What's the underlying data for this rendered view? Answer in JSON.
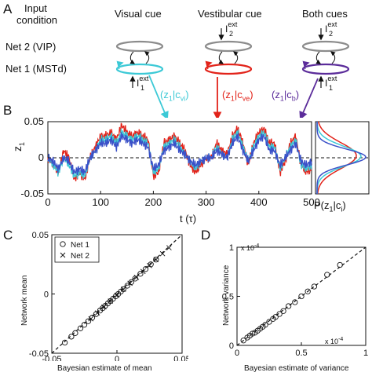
{
  "panels": {
    "A": {
      "letter": "A",
      "condition_header": [
        "Input",
        "condition"
      ],
      "columns": [
        {
          "label": "Visual cue",
          "color": "#3cc9d6",
          "arrow_label_main": "(z",
          "arrow_label_sub": "1",
          "arrow_label_mid": "|c",
          "arrow_label_sub2": "vi",
          "arrow_label_end": ")"
        },
        {
          "label": "Vestibular cue",
          "color": "#e2231a",
          "arrow_label_main": "(z",
          "arrow_label_sub": "1",
          "arrow_label_mid": "|c",
          "arrow_label_sub2": "ve",
          "arrow_label_end": ")"
        },
        {
          "label": "Both cues",
          "color": "#5b2c9a",
          "arrow_label_main": "(z",
          "arrow_label_sub": "1",
          "arrow_label_mid": "|c",
          "arrow_label_sub2": "b",
          "arrow_label_end": ")"
        }
      ],
      "net2_label": "Net 2 (VIP)",
      "net1_label": "Net 1 (MSTd)",
      "input_symbol": "I",
      "input_sup": "ext",
      "input_sub1": "1",
      "input_sub2": "2"
    },
    "B": {
      "letter": "B",
      "ylabel_main": "z",
      "ylabel_sub": "1",
      "xlabel": "t (τ)",
      "yticks": [
        "0.05",
        "0",
        "-0.05"
      ],
      "xticks": [
        "0",
        "100",
        "200",
        "300",
        "400",
        "500"
      ],
      "dist_label": "P(z",
      "dist_label_sub": "1",
      "dist_label_mid": "|c",
      "dist_label_sub2": "i",
      "dist_label_end": ")"
    },
    "C": {
      "letter": "C",
      "ylabel": "Network mean",
      "xlabel": "Bayesian estimate of mean",
      "yticks": [
        "0.05",
        "0",
        "-0.05"
      ],
      "xticks": [
        "-0.05",
        "0",
        "0.05"
      ],
      "legend": [
        "Net 1",
        "Net 2"
      ]
    },
    "D": {
      "letter": "D",
      "ylabel": "Network variance",
      "xlabel": "Bayesian estimate of variance",
      "yticks": [
        "1",
        "0.5",
        "0"
      ],
      "xticks": [
        "0",
        "0.5",
        "1"
      ],
      "y_mult": "x 10",
      "y_exp": "-4",
      "x_mult": "x 10",
      "x_exp": "-4"
    }
  },
  "colors": {
    "cyan": "#3cc9d6",
    "red": "#e2231a",
    "purple": "#5b2c9a",
    "blue": "#3a50c8",
    "gray": "#8c8c8c"
  },
  "chart_data": [
    {
      "type": "line",
      "panel": "B",
      "xlim": [
        0,
        500
      ],
      "ylim": [
        -0.05,
        0.05
      ],
      "x": [
        0,
        10,
        20,
        30,
        40,
        50,
        60,
        70,
        80,
        90,
        100,
        110,
        120,
        130,
        140,
        150,
        160,
        170,
        180,
        190,
        200,
        210,
        220,
        230,
        240,
        250,
        260,
        270,
        280,
        290,
        300,
        310,
        320,
        330,
        340,
        350,
        360,
        370,
        380,
        390,
        400,
        410,
        420,
        430,
        440,
        450,
        460,
        470,
        480,
        490,
        500
      ],
      "series": [
        {
          "name": "red",
          "values": [
            0.0,
            -0.01,
            -0.02,
            0.01,
            0.0,
            -0.03,
            -0.02,
            -0.03,
            0.0,
            0.015,
            0.03,
            0.03,
            0.035,
            0.025,
            0.045,
            0.035,
            0.03,
            0.035,
            0.03,
            0.025,
            -0.025,
            -0.02,
            0.02,
            0.025,
            0.03,
            0.02,
            0.01,
            -0.01,
            -0.02,
            -0.01,
            0.0,
            0.0,
            0.02,
            0.01,
            0.005,
            0.03,
            0.04,
            0.02,
            -0.01,
            0.02,
            0.035,
            0.04,
            0.02,
            0.02,
            -0.02,
            -0.005,
            0.02,
            0.03,
            -0.01,
            -0.02,
            -0.015
          ]
        },
        {
          "name": "cyan",
          "values": [
            0.0,
            -0.01,
            -0.02,
            0.0,
            -0.01,
            -0.025,
            -0.02,
            -0.025,
            0.0,
            0.01,
            0.025,
            0.025,
            0.03,
            0.02,
            0.035,
            0.03,
            0.025,
            0.03,
            0.025,
            0.02,
            -0.02,
            -0.015,
            0.015,
            0.02,
            0.025,
            0.015,
            0.005,
            -0.005,
            -0.015,
            -0.005,
            0.0,
            0.0,
            0.015,
            0.005,
            0.0,
            0.025,
            0.035,
            0.015,
            -0.005,
            0.015,
            0.03,
            0.035,
            0.015,
            0.015,
            -0.015,
            0.0,
            0.015,
            0.025,
            -0.01,
            -0.015,
            -0.01
          ]
        },
        {
          "name": "blue",
          "values": [
            0.0,
            -0.005,
            -0.015,
            0.0,
            -0.005,
            -0.02,
            -0.015,
            -0.02,
            0.0,
            0.01,
            0.02,
            0.02,
            0.025,
            0.015,
            0.03,
            0.025,
            0.02,
            0.025,
            0.02,
            0.015,
            -0.015,
            -0.01,
            0.01,
            0.015,
            0.02,
            0.01,
            0.005,
            -0.005,
            -0.01,
            -0.005,
            0.0,
            0.0,
            0.01,
            0.005,
            0.0,
            0.02,
            0.03,
            0.01,
            -0.005,
            0.01,
            0.025,
            0.03,
            0.01,
            0.01,
            -0.01,
            0.0,
            0.01,
            0.02,
            -0.005,
            -0.01,
            -0.005
          ]
        }
      ]
    },
    {
      "type": "scatter",
      "panel": "C",
      "xlim": [
        -0.05,
        0.05
      ],
      "ylim": [
        -0.05,
        0.05
      ],
      "series": [
        {
          "name": "Net 1",
          "x": [
            -0.04,
            -0.035,
            -0.032,
            -0.028,
            -0.025,
            -0.022,
            -0.019,
            -0.016,
            -0.013,
            -0.011,
            -0.009,
            -0.007,
            -0.005,
            -0.003,
            -0.001,
            0.001,
            0.003,
            0.005,
            0.008,
            0.011,
            0.014,
            0.018,
            0.022,
            0.026,
            0.03
          ],
          "y": [
            -0.041,
            -0.036,
            -0.033,
            -0.029,
            -0.026,
            -0.023,
            -0.02,
            -0.017,
            -0.014,
            -0.012,
            -0.01,
            -0.008,
            -0.006,
            -0.004,
            -0.002,
            0.0,
            0.002,
            0.004,
            0.007,
            0.01,
            0.013,
            0.017,
            0.021,
            0.025,
            0.029
          ]
        },
        {
          "name": "Net 2",
          "x": [
            -0.02,
            -0.015,
            -0.01,
            -0.005,
            0.0,
            0.005,
            0.01,
            0.015,
            0.02,
            0.025,
            0.03,
            0.035,
            0.04
          ],
          "y": [
            -0.021,
            -0.016,
            -0.011,
            -0.006,
            -0.001,
            0.004,
            0.009,
            0.014,
            0.019,
            0.024,
            0.029,
            0.034,
            0.039
          ]
        }
      ]
    },
    {
      "type": "scatter",
      "panel": "D",
      "xlim": [
        0,
        1
      ],
      "ylim": [
        0,
        1
      ],
      "series": [
        {
          "name": "Net 1",
          "x": [
            0.05,
            0.08,
            0.1,
            0.12,
            0.14,
            0.16,
            0.18,
            0.2,
            0.22,
            0.25,
            0.28,
            0.3,
            0.33,
            0.36,
            0.4,
            0.45,
            0.5,
            0.55,
            0.6,
            0.7,
            0.8
          ],
          "y": [
            0.05,
            0.08,
            0.1,
            0.12,
            0.13,
            0.15,
            0.17,
            0.19,
            0.21,
            0.24,
            0.27,
            0.29,
            0.32,
            0.35,
            0.4,
            0.44,
            0.5,
            0.55,
            0.6,
            0.72,
            0.82
          ]
        }
      ]
    }
  ]
}
